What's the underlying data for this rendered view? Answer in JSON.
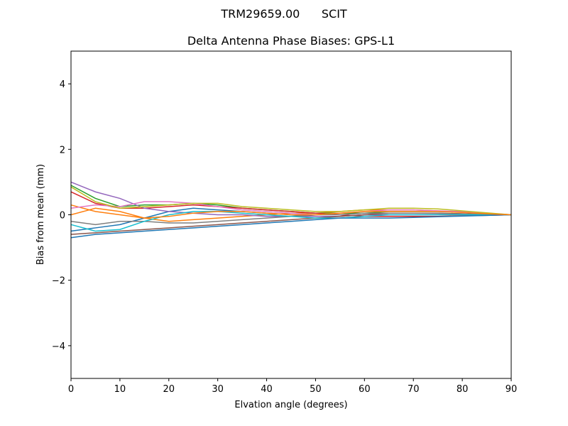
{
  "chart_data": {
    "type": "line",
    "suptitle": "TRM29659.00      SCIT",
    "title": "Delta Antenna Phase Biases: GPS-L1",
    "xlabel": "Elvation angle (degrees)",
    "ylabel": "Bias from mean (mm)",
    "x": [
      0,
      5,
      10,
      15,
      20,
      25,
      30,
      35,
      40,
      45,
      50,
      55,
      60,
      65,
      70,
      75,
      80,
      85,
      90
    ],
    "xlim": [
      0,
      90
    ],
    "xticks": [
      0,
      10,
      20,
      30,
      40,
      50,
      60,
      70,
      80,
      90
    ],
    "ylim": [
      -5,
      5
    ],
    "yticks": [
      {
        "value": -4,
        "label": "−4"
      },
      {
        "value": -2,
        "label": "−2"
      },
      0,
      2,
      4
    ],
    "grid": false,
    "series": [
      {
        "color": "#1f77b4",
        "values": [
          -0.5,
          -0.4,
          -0.3,
          -0.1,
          0.1,
          0.2,
          0.15,
          0.1,
          0.05,
          0.0,
          -0.05,
          -0.05,
          0.0,
          0.05,
          0.05,
          0.05,
          0.03,
          0.01,
          0
        ]
      },
      {
        "color": "#ff7f0e",
        "values": [
          0.3,
          0.1,
          0.0,
          -0.1,
          -0.2,
          -0.15,
          -0.1,
          -0.05,
          0.0,
          0.05,
          0.05,
          0.1,
          0.15,
          0.15,
          0.15,
          0.12,
          0.08,
          0.04,
          0
        ]
      },
      {
        "color": "#2ca02c",
        "values": [
          0.9,
          0.5,
          0.25,
          0.3,
          0.3,
          0.35,
          0.3,
          0.2,
          0.15,
          0.1,
          0.05,
          0.05,
          0.05,
          0.1,
          0.1,
          0.1,
          0.08,
          0.04,
          0
        ]
      },
      {
        "color": "#d62728",
        "values": [
          0.7,
          0.35,
          0.2,
          0.2,
          0.25,
          0.3,
          0.25,
          0.2,
          0.15,
          0.1,
          0.05,
          0.0,
          -0.05,
          -0.05,
          -0.05,
          -0.05,
          -0.03,
          -0.02,
          0
        ]
      },
      {
        "color": "#9467bd",
        "values": [
          1.0,
          0.7,
          0.5,
          0.2,
          0.1,
          0.05,
          0.0,
          0.0,
          -0.05,
          -0.05,
          -0.05,
          -0.05,
          0.0,
          0.0,
          0.0,
          0.0,
          0.0,
          0.0,
          0
        ]
      },
      {
        "color": "#8c564b",
        "values": [
          -0.6,
          -0.55,
          -0.5,
          -0.45,
          -0.4,
          -0.35,
          -0.3,
          -0.25,
          -0.2,
          -0.15,
          -0.1,
          -0.05,
          0.0,
          0.05,
          0.05,
          0.05,
          0.03,
          0.01,
          0
        ]
      },
      {
        "color": "#e377c2",
        "values": [
          0.2,
          0.3,
          0.25,
          0.4,
          0.4,
          0.35,
          0.25,
          0.15,
          0.1,
          0.05,
          0.0,
          0.05,
          0.1,
          0.15,
          0.15,
          0.12,
          0.1,
          0.05,
          0
        ]
      },
      {
        "color": "#7f7f7f",
        "values": [
          -0.2,
          -0.3,
          -0.2,
          -0.2,
          -0.25,
          -0.25,
          -0.2,
          -0.15,
          -0.1,
          -0.05,
          0.0,
          0.0,
          0.05,
          0.05,
          0.05,
          0.04,
          0.02,
          0.01,
          0
        ]
      },
      {
        "color": "#bcbd22",
        "values": [
          0.85,
          0.4,
          0.2,
          0.25,
          0.3,
          0.35,
          0.35,
          0.25,
          0.2,
          0.15,
          0.1,
          0.1,
          0.15,
          0.2,
          0.2,
          0.18,
          0.12,
          0.06,
          0
        ]
      },
      {
        "color": "#17becf",
        "values": [
          -0.3,
          -0.5,
          -0.45,
          -0.2,
          0.0,
          0.1,
          0.1,
          0.05,
          0.0,
          -0.05,
          -0.1,
          -0.1,
          -0.05,
          0.0,
          0.0,
          0.0,
          0.0,
          0.0,
          0
        ]
      },
      {
        "color": "#1f77b4",
        "values": [
          -0.7,
          -0.6,
          -0.55,
          -0.5,
          -0.45,
          -0.4,
          -0.35,
          -0.3,
          -0.25,
          -0.2,
          -0.15,
          -0.1,
          -0.1,
          -0.1,
          -0.08,
          -0.06,
          -0.04,
          -0.02,
          0
        ]
      },
      {
        "color": "#ff7f0e",
        "values": [
          0.0,
          0.2,
          0.1,
          -0.1,
          -0.05,
          0.05,
          0.1,
          0.1,
          0.05,
          0.0,
          0.0,
          0.05,
          0.1,
          0.1,
          0.1,
          0.1,
          0.07,
          0.03,
          0
        ]
      }
    ]
  }
}
